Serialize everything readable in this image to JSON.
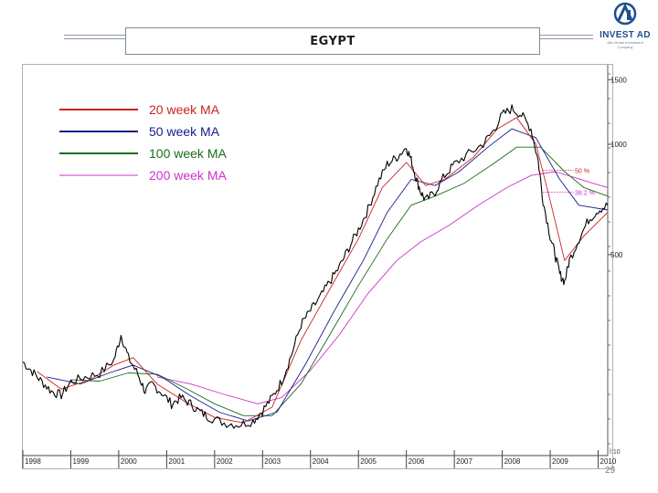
{
  "header": {
    "title": "EGYPT",
    "logo_name": "INVEST AD",
    "logo_tagline": [
      "Abu Dhabi Investment",
      "Company"
    ]
  },
  "page_number": "29",
  "colors": {
    "ma20": "#cc2222",
    "ma50": "#1a1a8c",
    "ma100": "#1a6b1a",
    "ma200": "#cc33cc",
    "price": "#000000",
    "fib50": "#cc2222",
    "fib382": "#cc33cc",
    "logo": "#1d4f8c"
  },
  "chart_data": {
    "type": "line",
    "title": "EGYPT",
    "x_ticks": [
      "1998",
      "1999",
      "2000",
      "2001",
      "2002",
      "2003",
      "2004",
      "2005",
      "2006",
      "2007",
      "2008",
      "2009",
      "2010"
    ],
    "y_axis": {
      "scale": "log",
      "ticks": [
        "1500",
        "1000",
        "500"
      ],
      "bottom_label": "ĩ:10",
      "range_hint": [
        150,
        1600
      ]
    },
    "legend": {
      "placement": "top-left",
      "items": [
        {
          "key": "ma20",
          "label": "20 week MA"
        },
        {
          "key": "ma50",
          "label": "50 week MA"
        },
        {
          "key": "ma100",
          "label": "100 week MA"
        },
        {
          "key": "ma200",
          "label": "200 week MA"
        }
      ]
    },
    "annotations": [
      {
        "label": "50 %",
        "value": 850,
        "color_key": "fib50"
      },
      {
        "label": "38.2 %",
        "value": 740,
        "color_key": "fib382"
      }
    ],
    "x_range": [
      1998.0,
      2010.2
    ],
    "price_points": [
      [
        1998.0,
        255
      ],
      [
        1998.2,
        240
      ],
      [
        1998.4,
        225
      ],
      [
        1998.6,
        212
      ],
      [
        1998.8,
        207
      ],
      [
        1999.0,
        225
      ],
      [
        1999.3,
        232
      ],
      [
        1999.6,
        237
      ],
      [
        1999.9,
        258
      ],
      [
        2000.05,
        302
      ],
      [
        2000.2,
        262
      ],
      [
        2000.4,
        236
      ],
      [
        2000.55,
        212
      ],
      [
        2000.7,
        222
      ],
      [
        2000.9,
        210
      ],
      [
        2001.1,
        196
      ],
      [
        2001.3,
        204
      ],
      [
        2001.5,
        196
      ],
      [
        2001.7,
        186
      ],
      [
        2001.9,
        180
      ],
      [
        2002.2,
        174
      ],
      [
        2002.5,
        172
      ],
      [
        2002.8,
        176
      ],
      [
        2003.0,
        188
      ],
      [
        2003.2,
        204
      ],
      [
        2003.4,
        226
      ],
      [
        2003.6,
        266
      ],
      [
        2003.8,
        322
      ],
      [
        2004.0,
        352
      ],
      [
        2004.2,
        382
      ],
      [
        2004.4,
        422
      ],
      [
        2004.6,
        462
      ],
      [
        2004.8,
        522
      ],
      [
        2005.0,
        585
      ],
      [
        2005.2,
        665
      ],
      [
        2005.4,
        782
      ],
      [
        2005.6,
        882
      ],
      [
        2005.8,
        922
      ],
      [
        2006.0,
        982
      ],
      [
        2006.1,
        905
      ],
      [
        2006.2,
        810
      ],
      [
        2006.3,
        742
      ],
      [
        2006.4,
        702
      ],
      [
        2006.6,
        742
      ],
      [
        2006.8,
        822
      ],
      [
        2007.0,
        882
      ],
      [
        2007.3,
        942
      ],
      [
        2007.6,
        1002
      ],
      [
        2007.8,
        1082
      ],
      [
        2008.0,
        1202
      ],
      [
        2008.2,
        1252
      ],
      [
        2008.4,
        1202
      ],
      [
        2008.6,
        1102
      ],
      [
        2008.75,
        902
      ],
      [
        2008.85,
        702
      ],
      [
        2009.0,
        562
      ],
      [
        2009.1,
        502
      ],
      [
        2009.2,
        442
      ],
      [
        2009.3,
        422
      ],
      [
        2009.4,
        482
      ],
      [
        2009.6,
        552
      ],
      [
        2009.8,
        622
      ],
      [
        2010.0,
        662
      ],
      [
        2010.2,
        682
      ]
    ],
    "ma20_points": [
      [
        1998.3,
        240
      ],
      [
        1998.8,
        215
      ],
      [
        1999.4,
        228
      ],
      [
        1999.9,
        250
      ],
      [
        2000.3,
        262
      ],
      [
        2000.8,
        222
      ],
      [
        2001.4,
        198
      ],
      [
        2002.0,
        180
      ],
      [
        2002.6,
        174
      ],
      [
        2003.2,
        192
      ],
      [
        2003.8,
        292
      ],
      [
        2004.4,
        402
      ],
      [
        2005.0,
        552
      ],
      [
        2005.5,
        762
      ],
      [
        2006.0,
        892
      ],
      [
        2006.4,
        772
      ],
      [
        2006.8,
        802
      ],
      [
        2007.4,
        922
      ],
      [
        2007.9,
        1102
      ],
      [
        2008.3,
        1182
      ],
      [
        2008.7,
        1002
      ],
      [
        2009.0,
        702
      ],
      [
        2009.3,
        482
      ],
      [
        2009.7,
        562
      ],
      [
        2010.2,
        652
      ]
    ],
    "ma50_points": [
      [
        1998.5,
        232
      ],
      [
        1999.2,
        222
      ],
      [
        1999.8,
        238
      ],
      [
        2000.3,
        250
      ],
      [
        2000.9,
        232
      ],
      [
        2001.5,
        206
      ],
      [
        2002.1,
        186
      ],
      [
        2002.7,
        176
      ],
      [
        2003.3,
        186
      ],
      [
        2003.9,
        252
      ],
      [
        2004.5,
        352
      ],
      [
        2005.1,
        482
      ],
      [
        2005.6,
        652
      ],
      [
        2006.1,
        802
      ],
      [
        2006.6,
        772
      ],
      [
        2007.1,
        842
      ],
      [
        2007.7,
        982
      ],
      [
        2008.2,
        1102
      ],
      [
        2008.7,
        1042
      ],
      [
        2009.2,
        802
      ],
      [
        2009.6,
        682
      ],
      [
        2010.2,
        662
      ]
    ],
    "ma100_points": [
      [
        1999.0,
        228
      ],
      [
        1999.6,
        226
      ],
      [
        2000.2,
        238
      ],
      [
        2000.8,
        236
      ],
      [
        2001.4,
        216
      ],
      [
        2002.0,
        196
      ],
      [
        2002.6,
        182
      ],
      [
        2003.2,
        182
      ],
      [
        2003.8,
        222
      ],
      [
        2004.4,
        302
      ],
      [
        2005.0,
        412
      ],
      [
        2005.6,
        552
      ],
      [
        2006.1,
        682
      ],
      [
        2006.6,
        722
      ],
      [
        2007.2,
        782
      ],
      [
        2007.8,
        882
      ],
      [
        2008.3,
        982
      ],
      [
        2008.8,
        982
      ],
      [
        2009.3,
        842
      ],
      [
        2009.7,
        762
      ],
      [
        2010.2,
        722
      ]
    ],
    "ma200_points": [
      [
        2000.8,
        232
      ],
      [
        2001.5,
        222
      ],
      [
        2002.2,
        208
      ],
      [
        2002.9,
        196
      ],
      [
        2003.4,
        204
      ],
      [
        2004.0,
        242
      ],
      [
        2004.6,
        302
      ],
      [
        2005.2,
        392
      ],
      [
        2005.8,
        482
      ],
      [
        2006.3,
        542
      ],
      [
        2006.9,
        602
      ],
      [
        2007.5,
        682
      ],
      [
        2008.1,
        762
      ],
      [
        2008.6,
        822
      ],
      [
        2009.1,
        842
      ],
      [
        2009.5,
        812
      ],
      [
        2009.9,
        782
      ],
      [
        2010.2,
        762
      ]
    ]
  }
}
